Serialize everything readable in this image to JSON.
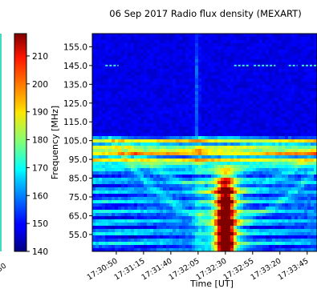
{
  "chart_data": {
    "type": "heatmap",
    "title": "06 Sep 2017 Radio flux density (MEXART)",
    "xlabel": "Time [UT]",
    "ylabel": "Frequency [MHz]",
    "x_ticks": [
      "17:30:50",
      "17:31:15",
      "17:31:40",
      "17:32:05",
      "17:32:30",
      "17:32:55",
      "17:33:20",
      "17:33:45"
    ],
    "y_ticks": [
      55.0,
      65.0,
      75.0,
      85.0,
      95.0,
      105.0,
      115.0,
      125.0,
      135.0,
      145.0,
      155.0
    ],
    "ylim": [
      162,
      46
    ],
    "xlim_seconds_after_17_30": [
      28,
      234
    ],
    "colorbar": {
      "colormap": "jet",
      "ticks": [
        140,
        150,
        160,
        170,
        180,
        190,
        200,
        210
      ],
      "range": [
        140,
        218
      ]
    },
    "left_panel_partial_tick": ":30",
    "features": {
      "burst_time": "17:32:30",
      "burst_frequency_range_mhz": [
        47,
        92
      ],
      "bright_bands_mhz": [
        92,
        95,
        98.5,
        101.5,
        104.5
      ],
      "low_noise_region_mhz": [
        108,
        162
      ],
      "interference_lines_mhz": [
        145.0
      ],
      "signal_floor": 140
    }
  }
}
